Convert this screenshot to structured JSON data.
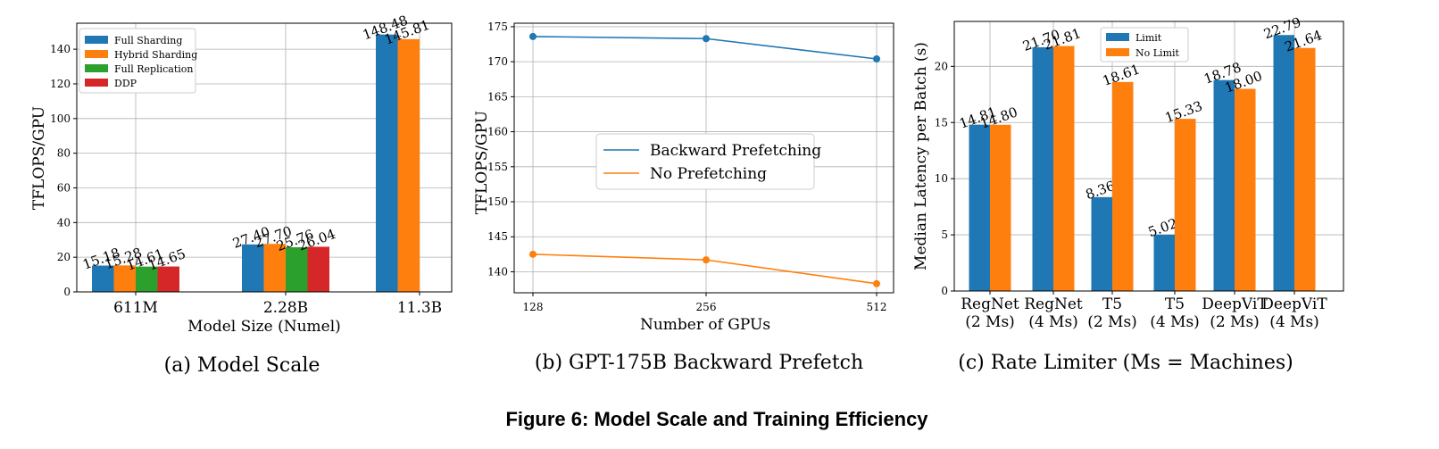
{
  "figure_caption": "Figure 6: Model Scale and Training Efficiency",
  "colors": {
    "blue": "#1f77b4",
    "orange": "#ff7f0e",
    "green": "#2ca02c",
    "red": "#d62728"
  },
  "chart_data": [
    {
      "type": "bar",
      "caption": "(a) Model Scale",
      "title": "",
      "xlabel": "Model Size (Numel)",
      "ylabel": "TFLOPS/GPU",
      "categories": [
        "611M",
        "2.28B",
        "11.3B"
      ],
      "ylim": [
        0,
        155
      ],
      "yticks": [
        0,
        20,
        40,
        60,
        80,
        100,
        120,
        140
      ],
      "grid": true,
      "legend_position": "top-left",
      "series": [
        {
          "name": "Full Sharding",
          "values": [
            15.18,
            27.4,
            148.48
          ],
          "labels": [
            "15.18",
            "27.40",
            "148.48"
          ]
        },
        {
          "name": "Hybrid Sharding",
          "values": [
            15.28,
            27.7,
            145.81
          ],
          "labels": [
            "15.28",
            "27.70",
            "145.81"
          ]
        },
        {
          "name": "Full Replication",
          "values": [
            14.61,
            25.76,
            null
          ],
          "labels": [
            "14.61",
            "25.76",
            ""
          ]
        },
        {
          "name": "DDP",
          "values": [
            14.65,
            26.04,
            null
          ],
          "labels": [
            "14.65",
            "26.04",
            ""
          ]
        }
      ]
    },
    {
      "type": "line",
      "caption": "(b) GPT-175B Backward Prefetch",
      "title": "",
      "xlabel": "Number of GPUs",
      "ylabel": "TFLOPS/GPU",
      "x": [
        "128",
        "256",
        "512"
      ],
      "ylim": [
        137,
        175.5
      ],
      "yticks": [
        140,
        145,
        150,
        155,
        160,
        165,
        170,
        175
      ],
      "grid": true,
      "legend_position": "center",
      "series": [
        {
          "name": "Backward Prefetching",
          "values": [
            173.6,
            173.3,
            170.4
          ]
        },
        {
          "name": "No Prefetching",
          "values": [
            142.5,
            141.7,
            138.3
          ]
        }
      ]
    },
    {
      "type": "bar",
      "caption": "(c) Rate Limiter (Ms = Machines)",
      "title": "",
      "xlabel": "",
      "ylabel": "Median Latency per Batch (s)",
      "categories": [
        [
          "RegNet",
          "(2 Ms)"
        ],
        [
          "RegNet",
          "(4 Ms)"
        ],
        [
          "T5",
          "(2 Ms)"
        ],
        [
          "T5",
          "(4 Ms)"
        ],
        [
          "DeepViT",
          "(2 Ms)"
        ],
        [
          "DeepViT",
          "(4 Ms)"
        ]
      ],
      "ylim": [
        0,
        24
      ],
      "yticks": [
        0,
        5,
        10,
        15,
        20
      ],
      "grid": true,
      "legend_position": "top-center",
      "series": [
        {
          "name": "Limit",
          "values": [
            14.81,
            21.7,
            8.36,
            5.02,
            18.78,
            22.79
          ],
          "labels": [
            "14.81",
            "21.70",
            "8.36",
            "5.02",
            "18.78",
            "22.79"
          ]
        },
        {
          "name": "No Limit",
          "values": [
            14.8,
            21.81,
            18.61,
            15.33,
            18.0,
            21.64
          ],
          "labels": [
            "14.80",
            "21.81",
            "18.61",
            "15.33",
            "18.00",
            "21.64"
          ]
        }
      ]
    }
  ]
}
